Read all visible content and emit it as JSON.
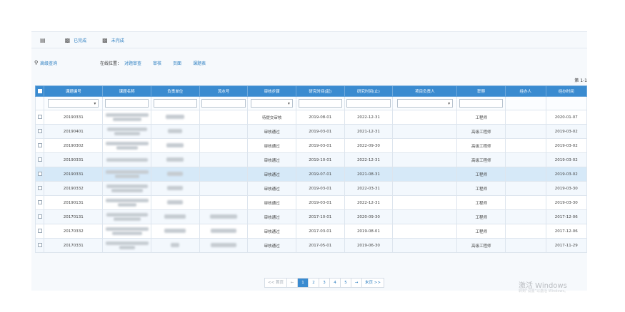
{
  "tabs": [
    {
      "label": "已完成",
      "icon": "bar-chart-icon"
    },
    {
      "label": "未完成",
      "icon": "bar-chart-icon"
    }
  ],
  "toolbar": {
    "advanced_search": "高级查询",
    "location_label": "在线位置：",
    "crumbs": [
      "对题审查",
      "审核",
      "页面",
      "课题表"
    ]
  },
  "page_info": "第 1-1",
  "table": {
    "headers": [
      "课题编号",
      "课题名称",
      "负责单位",
      "流水号",
      "审核步骤",
      "研究时间(起)",
      "研究时间(止)",
      "项目负责人",
      "职称",
      "经办人",
      "经办时间"
    ],
    "rows": [
      {
        "id": "20190331",
        "step": "待提交审核",
        "start": "2019-08-01",
        "end": "2022-12-31",
        "title": "工程师",
        "date": "2020-01-07"
      },
      {
        "id": "20190401",
        "step": "审核通过",
        "start": "2019-03-01",
        "end": "2021-12-31",
        "title": "高级工程师",
        "date": "2019-03-02"
      },
      {
        "id": "20190302",
        "step": "审核通过",
        "start": "2019-03-01",
        "end": "2022-09-30",
        "title": "高级工程师",
        "date": "2019-03-02"
      },
      {
        "id": "20190331",
        "step": "审核通过",
        "start": "2019-10-01",
        "end": "2022-12-31",
        "title": "高级工程师",
        "date": "2019-03-02"
      },
      {
        "id": "20190331",
        "step": "审核通过",
        "start": "2019-07-01",
        "end": "2021-08-31",
        "title": "工程师",
        "date": "2019-03-02"
      },
      {
        "id": "20190332",
        "step": "审核通过",
        "start": "2019-03-01",
        "end": "2022-03-31",
        "title": "工程师",
        "date": "2019-03-30"
      },
      {
        "id": "20190131",
        "step": "审核通过",
        "start": "2019-03-01",
        "end": "2022-12-31",
        "title": "工程师",
        "date": "2019-03-30"
      },
      {
        "id": "20170131",
        "step": "审核通过",
        "start": "2017-10-01",
        "end": "2020-09-30",
        "title": "工程师",
        "date": "2017-12-06"
      },
      {
        "id": "20170332",
        "step": "审核通过",
        "start": "2017-03-01",
        "end": "2019-08-01",
        "title": "工程师",
        "date": "2017-12-06"
      },
      {
        "id": "20170331",
        "step": "审核通过",
        "start": "2017-05-01",
        "end": "2019-06-30",
        "title": "高级工程师",
        "date": "2017-11-29"
      }
    ]
  },
  "pager": {
    "first": "<< 首页",
    "prev": "←",
    "pages": [
      "1",
      "2",
      "3",
      "4",
      "5"
    ],
    "next": "→",
    "last": "末页 >>",
    "current": "1"
  },
  "watermark": {
    "line1": "激活 Windows",
    "line2": "转到“设置”以激活 Windows。"
  },
  "colors": {
    "header_bg": "#3a8bd0",
    "link": "#2d7fc1",
    "selected_row": "#d6e9f8"
  }
}
